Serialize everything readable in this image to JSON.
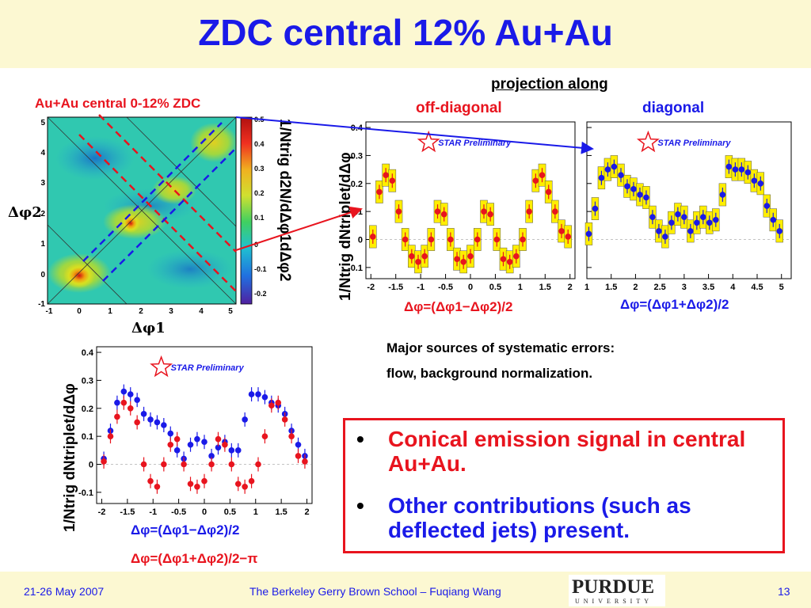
{
  "title": "ZDC central 12% Au+Au",
  "heatmap": {
    "label": "Au+Au central 0-12% ZDC",
    "x_ticks": [
      "-1",
      "0",
      "1",
      "2",
      "3",
      "4",
      "5"
    ],
    "y_ticks": [
      "-1",
      "0",
      "1",
      "2",
      "3",
      "4",
      "5"
    ],
    "colorbar_ticks": [
      "0.5",
      "0.4",
      "0.3",
      "0.2",
      "0.1",
      "0",
      "-0.1",
      "-0.2"
    ],
    "x_axis_label": "Δφ1",
    "y_axis_label": "Δφ2",
    "z_axis_label": "1/Ntrig d2N/dΔφ1dΔφ2"
  },
  "projection": {
    "header": "projection along",
    "off_diagonal": "off-diagonal",
    "diagonal": "diagonal"
  },
  "star_label": "STAR Preliminary",
  "ylabel_proj": "1/Ntrig dNtriplet/dΔφ",
  "chart_data": [
    {
      "type": "scatter",
      "xlim": [
        -2.1,
        2.1
      ],
      "ylim": [
        -0.14,
        0.42
      ],
      "x_ticks": [
        "-2",
        "-1.5",
        "-1",
        "-0.5",
        "0",
        "0.5",
        "1",
        "1.5",
        "2"
      ],
      "y_ticks": [
        "0.4",
        "0.3",
        "0.2",
        "0.1",
        "0",
        "-0.1"
      ],
      "xlabel": "Δφ=(Δφ1−Δφ2)/2",
      "series": [
        {
          "color": "#e8141e",
          "x": [
            -1.96,
            -1.83,
            -1.7,
            -1.57,
            -1.44,
            -1.31,
            -1.18,
            -1.05,
            -0.92,
            -0.79,
            -0.66,
            -0.53,
            -0.4,
            -0.27,
            -0.14,
            0.0,
            0.14,
            0.27,
            0.4,
            0.53,
            0.66,
            0.79,
            0.92,
            1.05,
            1.18,
            1.31,
            1.44,
            1.57,
            1.7,
            1.83,
            1.96
          ],
          "y": [
            0.01,
            0.17,
            0.23,
            0.21,
            0.1,
            0.0,
            -0.06,
            -0.08,
            -0.06,
            0.0,
            0.1,
            0.09,
            0.0,
            -0.07,
            -0.08,
            -0.06,
            0.0,
            0.1,
            0.09,
            0.0,
            -0.07,
            -0.08,
            -0.06,
            0.0,
            0.1,
            0.21,
            0.23,
            0.17,
            0.1,
            0.03,
            0.01
          ]
        }
      ]
    },
    {
      "type": "scatter",
      "xlim": [
        1.0,
        5.2
      ],
      "ylim": [
        -0.14,
        0.42
      ],
      "x_ticks": [
        "1",
        "1.5",
        "2",
        "2.5",
        "3",
        "3.5",
        "4",
        "4.5",
        "5"
      ],
      "xlabel": "Δφ=(Δφ1+Δφ2)/2",
      "series": [
        {
          "color": "#1a1ae8",
          "x": [
            1.04,
            1.17,
            1.3,
            1.43,
            1.56,
            1.7,
            1.83,
            1.96,
            2.09,
            2.22,
            2.35,
            2.48,
            2.61,
            2.74,
            2.87,
            3.0,
            3.13,
            3.26,
            3.39,
            3.52,
            3.65,
            3.79,
            3.92,
            4.05,
            4.18,
            4.31,
            4.44,
            4.57,
            4.7,
            4.83,
            4.96
          ],
          "y": [
            0.02,
            0.11,
            0.22,
            0.25,
            0.26,
            0.23,
            0.19,
            0.18,
            0.16,
            0.15,
            0.08,
            0.03,
            0.01,
            0.06,
            0.09,
            0.08,
            0.03,
            0.06,
            0.08,
            0.06,
            0.07,
            0.16,
            0.26,
            0.25,
            0.25,
            0.24,
            0.21,
            0.2,
            0.12,
            0.07,
            0.03
          ]
        }
      ]
    },
    {
      "type": "scatter",
      "xlim": [
        -2.1,
        2.1
      ],
      "ylim": [
        -0.14,
        0.42
      ],
      "x_ticks": [
        "-2",
        "-1.5",
        "-1",
        "-0.5",
        "0",
        "0.5",
        "1",
        "1.5",
        "2"
      ],
      "y_ticks": [
        "0.4",
        "0.3",
        "0.2",
        "0.1",
        "0",
        "-0.1"
      ],
      "legend": [
        "Δφ=(Δφ1−Δφ2)/2",
        "Δφ=(Δφ1+Δφ2)/2−π"
      ],
      "series": [
        {
          "name": "Δφ=(Δφ1−Δφ2)/2",
          "color": "#1a1ae8",
          "x": [
            -1.96,
            -1.83,
            -1.7,
            -1.57,
            -1.44,
            -1.31,
            -1.18,
            -1.05,
            -0.92,
            -0.79,
            -0.66,
            -0.53,
            -0.4,
            -0.27,
            -0.14,
            0.0,
            0.14,
            0.27,
            0.4,
            0.53,
            0.66,
            0.79,
            0.92,
            1.05,
            1.18,
            1.31,
            1.44,
            1.57,
            1.7,
            1.83,
            1.96
          ],
          "y": [
            0.02,
            0.12,
            0.22,
            0.26,
            0.25,
            0.23,
            0.18,
            0.16,
            0.15,
            0.14,
            0.11,
            0.05,
            0.02,
            0.07,
            0.09,
            0.08,
            0.03,
            0.06,
            0.08,
            0.05,
            0.05,
            0.16,
            0.25,
            0.25,
            0.24,
            0.22,
            0.21,
            0.18,
            0.12,
            0.07,
            0.03
          ]
        },
        {
          "name": "Δφ=(Δφ1+Δφ2)/2−π",
          "color": "#e8141e",
          "x": [
            -1.96,
            -1.83,
            -1.7,
            -1.57,
            -1.44,
            -1.31,
            -1.18,
            -1.05,
            -0.92,
            -0.79,
            -0.66,
            -0.53,
            -0.4,
            -0.27,
            -0.14,
            0.0,
            0.14,
            0.27,
            0.4,
            0.53,
            0.66,
            0.79,
            0.92,
            1.05,
            1.18,
            1.31,
            1.44,
            1.57,
            1.7,
            1.83,
            1.96
          ],
          "y": [
            0.01,
            0.1,
            0.17,
            0.22,
            0.2,
            0.15,
            0.0,
            -0.06,
            -0.08,
            0.0,
            0.07,
            0.09,
            0.0,
            -0.07,
            -0.08,
            -0.06,
            0.0,
            0.09,
            0.07,
            0.0,
            -0.07,
            -0.08,
            -0.06,
            0.0,
            0.1,
            0.21,
            0.22,
            0.16,
            0.1,
            0.03,
            0.01
          ]
        }
      ]
    }
  ],
  "notes": {
    "line1": "Major sources of systematic errors:",
    "line2": "flow, background normalization."
  },
  "bullets": [
    {
      "text": "Conical emission signal in central Au+Au.",
      "color": "#e8141e"
    },
    {
      "text": "Other contributions (such as deflected jets) present.",
      "color": "#1a1ae8"
    }
  ],
  "bullet_symbol": "•",
  "footer": {
    "date": "21-26 May 2007",
    "center": "The Berkeley Gerry Brown School – Fuqiang Wang",
    "page": "13",
    "logo_main": "PURDUE",
    "logo_sub": "UNIVERSITY"
  }
}
